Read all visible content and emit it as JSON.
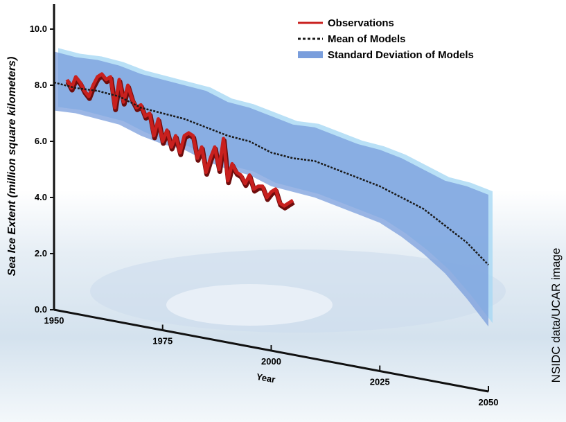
{
  "chart_data": {
    "type": "line",
    "xlabel": "Year",
    "ylabel": "Sea Ice Extent (million square kilometers)",
    "credit": "NSIDC data/UCAR image",
    "xlim": [
      1950,
      2050
    ],
    "xticks": [
      1950,
      1975,
      2000,
      2025,
      2050
    ],
    "ylim": [
      0,
      10
    ],
    "yticks": [
      {
        "value": 0,
        "label": "0.0"
      },
      {
        "value": 2,
        "label": "2.0"
      },
      {
        "value": 4,
        "label": "4.0"
      },
      {
        "value": 6,
        "label": "6.0"
      },
      {
        "value": 8,
        "label": "8.0"
      },
      {
        "value": 10,
        "label": "10.0"
      }
    ],
    "legend": "upper right",
    "series": [
      {
        "name": "Observations",
        "color": "#c8201e",
        "x": [
          1953,
          1954,
          1955,
          1956,
          1957,
          1958,
          1959,
          1960,
          1961,
          1962,
          1963,
          1964,
          1965,
          1966,
          1967,
          1968,
          1969,
          1970,
          1971,
          1972,
          1973,
          1974,
          1975,
          1976,
          1977,
          1978,
          1979,
          1980,
          1981,
          1982,
          1983,
          1984,
          1985,
          1986,
          1987,
          1988,
          1989,
          1990,
          1991,
          1992,
          1993,
          1994,
          1995,
          1996,
          1997,
          1998,
          1999,
          2000,
          2001,
          2002,
          2003,
          2004,
          2005
        ],
        "values": [
          8.2,
          7.9,
          8.3,
          8.1,
          7.8,
          7.6,
          8.0,
          8.3,
          8.4,
          8.2,
          8.3,
          7.2,
          8.2,
          7.4,
          8.0,
          7.5,
          7.2,
          7.3,
          6.9,
          7.0,
          6.2,
          6.8,
          6.0,
          6.4,
          5.8,
          6.2,
          5.6,
          6.2,
          6.3,
          6.2,
          5.4,
          5.8,
          4.9,
          5.4,
          5.8,
          5.0,
          6.1,
          4.6,
          5.2,
          4.9,
          4.8,
          4.5,
          4.8,
          4.3,
          4.4,
          4.4,
          4.0,
          4.2,
          4.3,
          3.8,
          3.7,
          3.8,
          3.9
        ]
      },
      {
        "name": "Mean of Models",
        "color": "#1a1a1a",
        "x": [
          1950,
          1955,
          1960,
          1965,
          1970,
          1975,
          1980,
          1985,
          1990,
          1995,
          2000,
          2005,
          2010,
          2015,
          2020,
          2025,
          2030,
          2035,
          2040,
          2045,
          2050
        ],
        "values": [
          8.1,
          7.9,
          7.8,
          7.6,
          7.2,
          7.0,
          6.8,
          6.5,
          6.2,
          6.0,
          5.6,
          5.4,
          5.3,
          5.0,
          4.7,
          4.4,
          4.0,
          3.6,
          3.0,
          2.4,
          1.6
        ]
      },
      {
        "name": "Standard Deviation of Models",
        "color": "#7a9edc",
        "x": [
          1950,
          1955,
          1960,
          1965,
          1970,
          1975,
          1980,
          1985,
          1990,
          1995,
          2000,
          2005,
          2010,
          2015,
          2020,
          2025,
          2030,
          2035,
          2040,
          2045,
          2050
        ],
        "upper": [
          9.2,
          9.0,
          8.9,
          8.7,
          8.4,
          8.2,
          8.0,
          7.8,
          7.4,
          7.2,
          6.9,
          6.6,
          6.5,
          6.2,
          5.9,
          5.7,
          5.4,
          5.0,
          4.6,
          4.4,
          4.1
        ],
        "lower": [
          7.1,
          7.0,
          6.8,
          6.6,
          6.2,
          5.9,
          5.7,
          5.3,
          5.0,
          4.8,
          4.4,
          4.2,
          4.0,
          3.7,
          3.4,
          3.1,
          2.6,
          2.0,
          1.3,
          0.4,
          -0.6
        ]
      }
    ]
  }
}
